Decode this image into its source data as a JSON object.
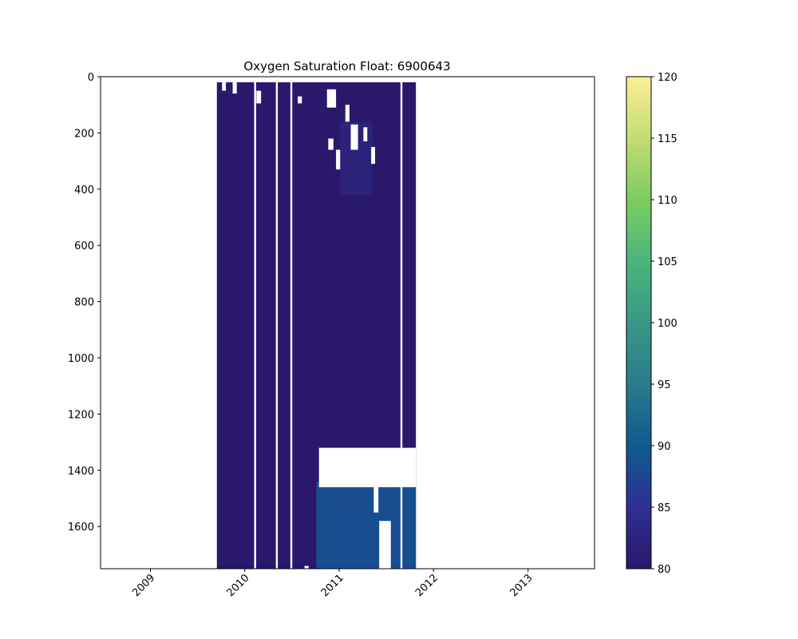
{
  "chart_data": {
    "type": "heatmap",
    "title": "Oxygen Saturation Float: 6900643",
    "xlabel": "",
    "ylabel": "",
    "x_axis": {
      "kind": "date",
      "range": [
        "2008-06-22",
        "2013-09-15"
      ],
      "ticks": [
        {
          "value": "2009-01-01",
          "label": "2009"
        },
        {
          "value": "2010-01-01",
          "label": "2010"
        },
        {
          "value": "2011-01-01",
          "label": "2011"
        },
        {
          "value": "2012-01-01",
          "label": "2012"
        },
        {
          "value": "2013-01-01",
          "label": "2013"
        }
      ]
    },
    "y_axis": {
      "range": [
        0,
        1750
      ],
      "inverted": true,
      "ticks": [
        0,
        200,
        400,
        600,
        800,
        1000,
        1200,
        1400,
        1600
      ]
    },
    "colorbar": {
      "colormap": "haline",
      "range": [
        80,
        120
      ],
      "ticks": [
        80,
        85,
        90,
        95,
        100,
        105,
        110,
        115,
        120
      ],
      "colors": [
        "#2a186c",
        "#2e3093",
        "#0f5b8f",
        "#2a7b8c",
        "#3a9787",
        "#4cb57b",
        "#7ccc61",
        "#c3dc75",
        "#fdee99"
      ]
    },
    "data_regions": [
      {
        "start": "2009-09-15",
        "end": "2011-10-25",
        "depth_top": 20,
        "depth_bottom": 1750,
        "value": 80
      },
      {
        "start": "2010-10-05",
        "end": "2011-10-25",
        "depth_top": 1440,
        "depth_bottom": 1750,
        "value": 88.5
      },
      {
        "start": "2011-01-05",
        "end": "2011-05-10",
        "depth_top": 160,
        "depth_bottom": 420,
        "value": 82
      }
    ],
    "gap_lines": [
      "2010-02-10",
      "2010-05-05",
      "2010-06-30",
      "2011-08-30"
    ],
    "missing_cells": [
      {
        "start": "2010-10-15",
        "end": "2011-10-25",
        "depth_top": 1320,
        "depth_bottom": 1460
      },
      {
        "start": "2011-06-05",
        "end": "2011-07-20",
        "depth_top": 1580,
        "depth_bottom": 1750
      },
      {
        "start": "2011-05-15",
        "end": "2011-06-02",
        "depth_top": 1440,
        "depth_bottom": 1550
      },
      {
        "start": "2009-10-05",
        "end": "2009-10-20",
        "depth_top": 20,
        "depth_bottom": 50
      },
      {
        "start": "2009-11-15",
        "end": "2009-12-01",
        "depth_top": 20,
        "depth_bottom": 60
      },
      {
        "start": "2010-02-15",
        "end": "2010-03-05",
        "depth_top": 50,
        "depth_bottom": 95
      },
      {
        "start": "2010-07-25",
        "end": "2010-08-10",
        "depth_top": 70,
        "depth_bottom": 95
      },
      {
        "start": "2010-11-15",
        "end": "2010-12-20",
        "depth_top": 45,
        "depth_bottom": 110
      },
      {
        "start": "2011-01-25",
        "end": "2011-02-10",
        "depth_top": 100,
        "depth_bottom": 160
      },
      {
        "start": "2011-02-15",
        "end": "2011-03-15",
        "depth_top": 170,
        "depth_bottom": 260
      },
      {
        "start": "2010-11-20",
        "end": "2010-12-10",
        "depth_top": 220,
        "depth_bottom": 260
      },
      {
        "start": "2011-04-05",
        "end": "2011-04-20",
        "depth_top": 180,
        "depth_bottom": 230
      },
      {
        "start": "2011-05-05",
        "end": "2011-05-20",
        "depth_top": 250,
        "depth_bottom": 310
      },
      {
        "start": "2010-12-20",
        "end": "2011-01-05",
        "depth_top": 260,
        "depth_bottom": 330
      },
      {
        "start": "2010-08-20",
        "end": "2010-09-05",
        "depth_top": 1740,
        "depth_bottom": 1750
      }
    ]
  }
}
